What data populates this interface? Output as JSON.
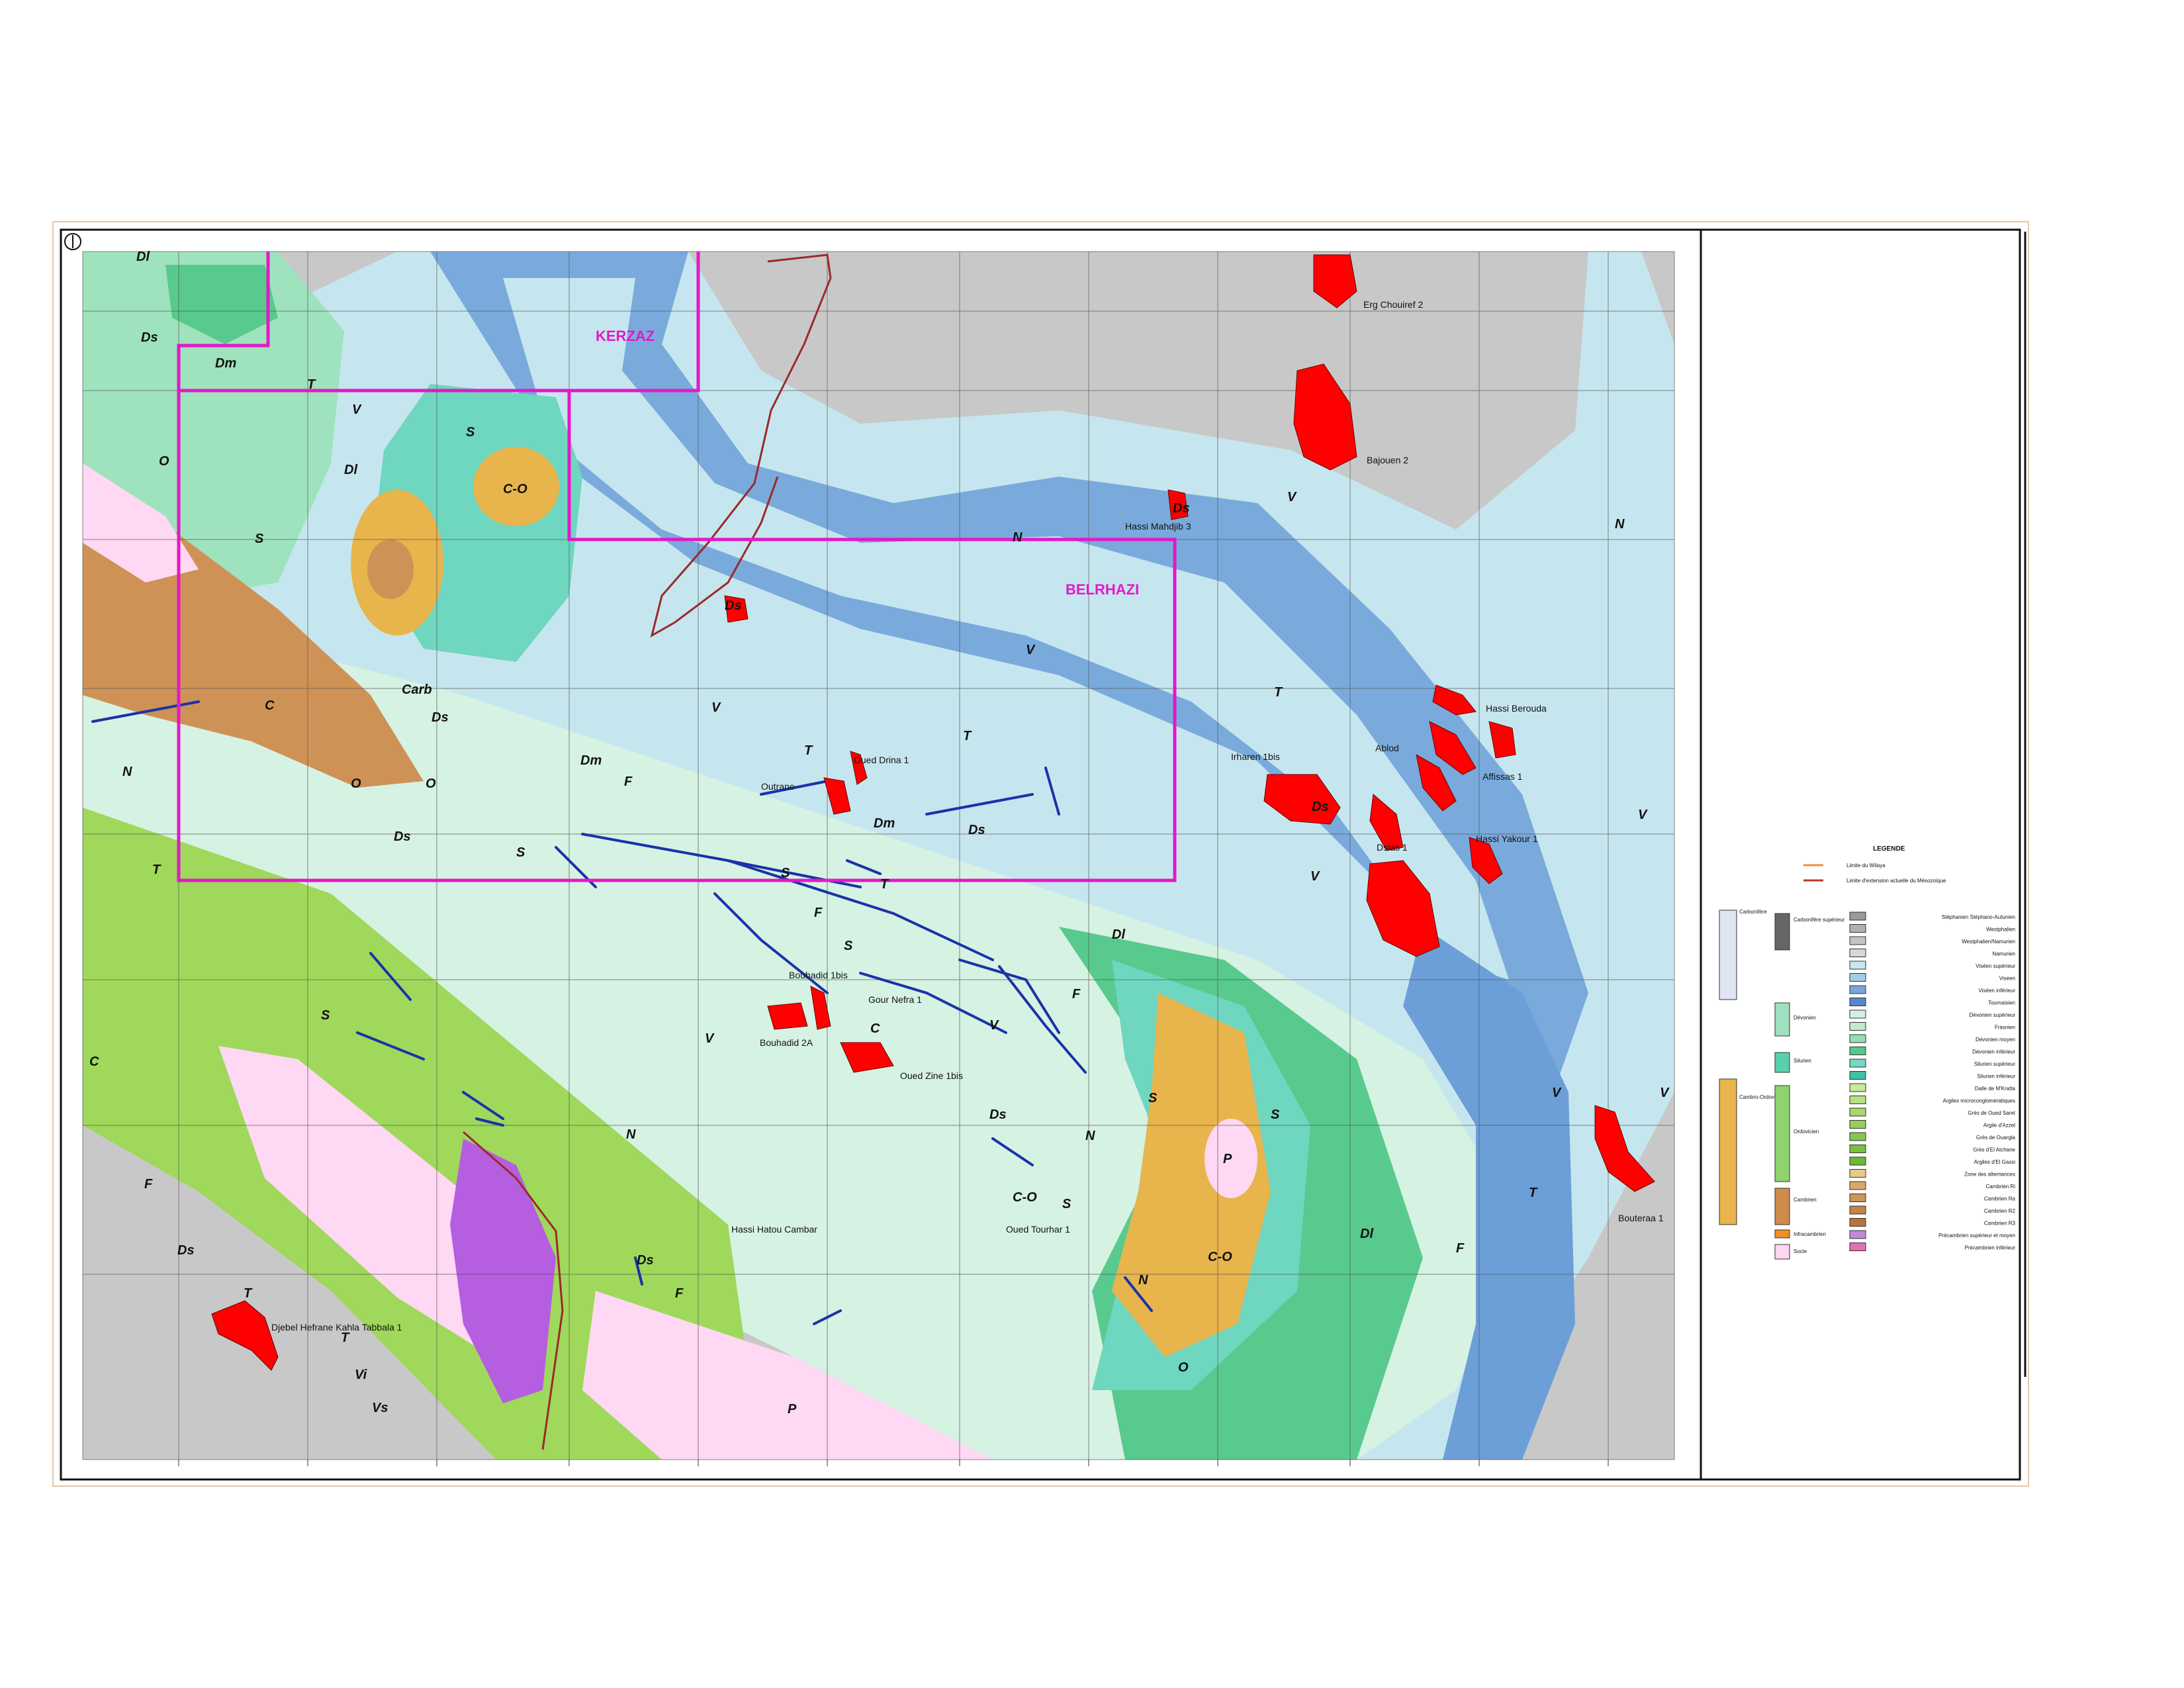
{
  "blocks": [
    {
      "id": "kerzaz",
      "label": "KERZAZ"
    },
    {
      "id": "belrhazi",
      "label": "BELRHAZI"
    }
  ],
  "wells": [
    {
      "id": "erg-chouiref-2",
      "label": "Erg Chouiref 2"
    },
    {
      "id": "bajouen-2",
      "label": "Bajouen 2"
    },
    {
      "id": "hassi-mahdjib-3",
      "label": "Hassi Mahdjib 3"
    },
    {
      "id": "hassi-berouda",
      "label": "Hassi Berouda"
    },
    {
      "id": "ablod",
      "label": "Ablod"
    },
    {
      "id": "affissas-1",
      "label": "Affissas 1"
    },
    {
      "id": "irharen-1bis",
      "label": "Irharen 1bis"
    },
    {
      "id": "dsias-1",
      "label": "Dsias 1"
    },
    {
      "id": "hassi-yakour-1",
      "label": "Hassi Yakour 1"
    },
    {
      "id": "oued-drina-1",
      "label": "Oued Drina 1"
    },
    {
      "id": "outrane",
      "label": "Outrane"
    },
    {
      "id": "bouhadid-1bis",
      "label": "Bouhadid 1bis"
    },
    {
      "id": "gour-nefra-1",
      "label": "Gour Nefra 1"
    },
    {
      "id": "bouhadid-2a",
      "label": "Bouhadid 2A"
    },
    {
      "id": "oued-zine-1bis",
      "label": "Oued Zine 1bis"
    },
    {
      "id": "oued-tourhar-1",
      "label": "Oued Tourhar 1"
    },
    {
      "id": "hassi-hatou-cambar",
      "label": "Hassi Hatou Cambar"
    },
    {
      "id": "djebel-hefrane",
      "label": "Djebel Hefrane Kahla Tabbala 1"
    },
    {
      "id": "bouteraa-1",
      "label": "Bouteraa 1"
    }
  ],
  "formation_labels": [
    "Dl",
    "Ds",
    "Dm",
    "T",
    "V",
    "O",
    "S",
    "C-O",
    "Carb",
    "C",
    "N",
    "F",
    "P",
    "Vi",
    "Vs"
  ],
  "legend": {
    "title": "LEGENDE",
    "line_items": [
      {
        "id": "limit-1",
        "label": "Limite du Wilaya",
        "color": "#f08a3c"
      },
      {
        "id": "limit-2",
        "label": "Limite d'extension actuelle du Mésozoïque",
        "color": "#b33a2a"
      }
    ],
    "groups": [
      {
        "id": "carbonifere",
        "label": "Carbonifère",
        "color": "#dfe6f2"
      },
      {
        "id": "cambro-ordovicien",
        "label": "Cambro-Ordovicien",
        "color": "#e8b44c"
      }
    ],
    "subgroups": [
      {
        "id": "carb-sup",
        "label": "Carbonifère supérieur",
        "color": "#666666"
      },
      {
        "id": "devonien",
        "label": "Dévonien",
        "color": "#9fe0c0"
      },
      {
        "id": "silurien",
        "label": "Silurien",
        "color": "#59cfae"
      },
      {
        "id": "ordovicien",
        "label": "Ordovicien",
        "color": "#8ed36b"
      },
      {
        "id": "cambrien",
        "label": "Cambrien",
        "color": "#d08a4a"
      },
      {
        "id": "infracambrien",
        "label": "Infracambrien",
        "color": "#f28c28"
      },
      {
        "id": "socle",
        "label": "Socle",
        "color": "#ffd6f2"
      }
    ],
    "units": [
      {
        "id": "u1",
        "code": "",
        "label": "Stéphanien Stéphano-Autunien",
        "color": "#9a9a9a"
      },
      {
        "id": "u2",
        "code": "",
        "label": "Westphalien",
        "color": "#b0b0b0"
      },
      {
        "id": "u3",
        "code": "",
        "label": "Westphalien/Namurien",
        "color": "#c4c4c4"
      },
      {
        "id": "u4",
        "code": "",
        "label": "Namurien",
        "color": "#d8d8d8"
      },
      {
        "id": "u5",
        "code": "",
        "label": "Viséen supérieur",
        "color": "#c8e6f0"
      },
      {
        "id": "u6",
        "code": "",
        "label": "Viséen",
        "color": "#9fcde8"
      },
      {
        "id": "u7",
        "code": "",
        "label": "Viséen inférieur",
        "color": "#7aa6d8"
      },
      {
        "id": "u8",
        "code": "",
        "label": "Tournaisien",
        "color": "#5a86c8"
      },
      {
        "id": "u9",
        "code": "",
        "label": "Dévonien supérieur",
        "color": "#d3f1e2"
      },
      {
        "id": "u10",
        "code": "",
        "label": "Frasnien",
        "color": "#bfeacd"
      },
      {
        "id": "u11",
        "code": "",
        "label": "Dévonien moyen",
        "color": "#93ddb2"
      },
      {
        "id": "u12",
        "code": "",
        "label": "Dévonien inférieur",
        "color": "#55c98a"
      },
      {
        "id": "u13",
        "code": "",
        "label": "Silurien supérieur",
        "color": "#74d8c2"
      },
      {
        "id": "u14",
        "code": "",
        "label": "Silurien inférieur",
        "color": "#3fbfa4"
      },
      {
        "id": "u15",
        "code": "",
        "label": "Dalle de M'Kratta",
        "color": "#c8e89a"
      },
      {
        "id": "u16",
        "code": "",
        "label": "Argiles microconglomératiques",
        "color": "#b7e07e"
      },
      {
        "id": "u17",
        "code": "",
        "label": "Grès de Oued Saret",
        "color": "#a6d86a"
      },
      {
        "id": "u18",
        "code": "",
        "label": "Argile d'Azzel",
        "color": "#95cf58"
      },
      {
        "id": "u19",
        "code": "",
        "label": "Grès de Ouargla",
        "color": "#86c74c"
      },
      {
        "id": "u20",
        "code": "",
        "label": "Grès d'El Atchane",
        "color": "#79bf40"
      },
      {
        "id": "u21",
        "code": "",
        "label": "Argiles d'El Gassi",
        "color": "#6cb736"
      },
      {
        "id": "u22",
        "code": "",
        "label": "Zone des alternances",
        "color": "#e8c98a"
      },
      {
        "id": "u23",
        "code": "",
        "label": "Cambrien Ri",
        "color": "#d9a86a"
      },
      {
        "id": "u24",
        "code": "",
        "label": "Cambrien Ra",
        "color": "#cd9658"
      },
      {
        "id": "u25",
        "code": "",
        "label": "Cambrien R2",
        "color": "#c28548"
      },
      {
        "id": "u26",
        "code": "",
        "label": "Cambrien R3",
        "color": "#b6763a"
      },
      {
        "id": "u27",
        "code": "",
        "label": "Précambrien supérieur et moyen",
        "color": "#c08ad8"
      },
      {
        "id": "u28",
        "code": "",
        "label": "Précambrien inférieur",
        "color": "#e66fb0"
      }
    ]
  },
  "colors": {
    "namurien_grey": "#c8c8c8",
    "visean_light": "#c6e6ef",
    "visean_mid": "#9fcde8",
    "tournaisien": "#6c9fd8",
    "dev_sup": "#d6f2e3",
    "dev_mid": "#9ee3bd",
    "dev_inf": "#58ca8d",
    "silurien": "#6fd6c0",
    "ordovicien": "#9fd85a",
    "cambro_ord": "#e8b44c",
    "cambrien": "#cf9256",
    "socle": "#ffd8f3",
    "precambrien": "#b55ee0",
    "gas_field": "#ff0000",
    "fault": "#1a33a8",
    "block_outline": "#e418c9",
    "mesozoic_limit": "#9a2a2a"
  }
}
